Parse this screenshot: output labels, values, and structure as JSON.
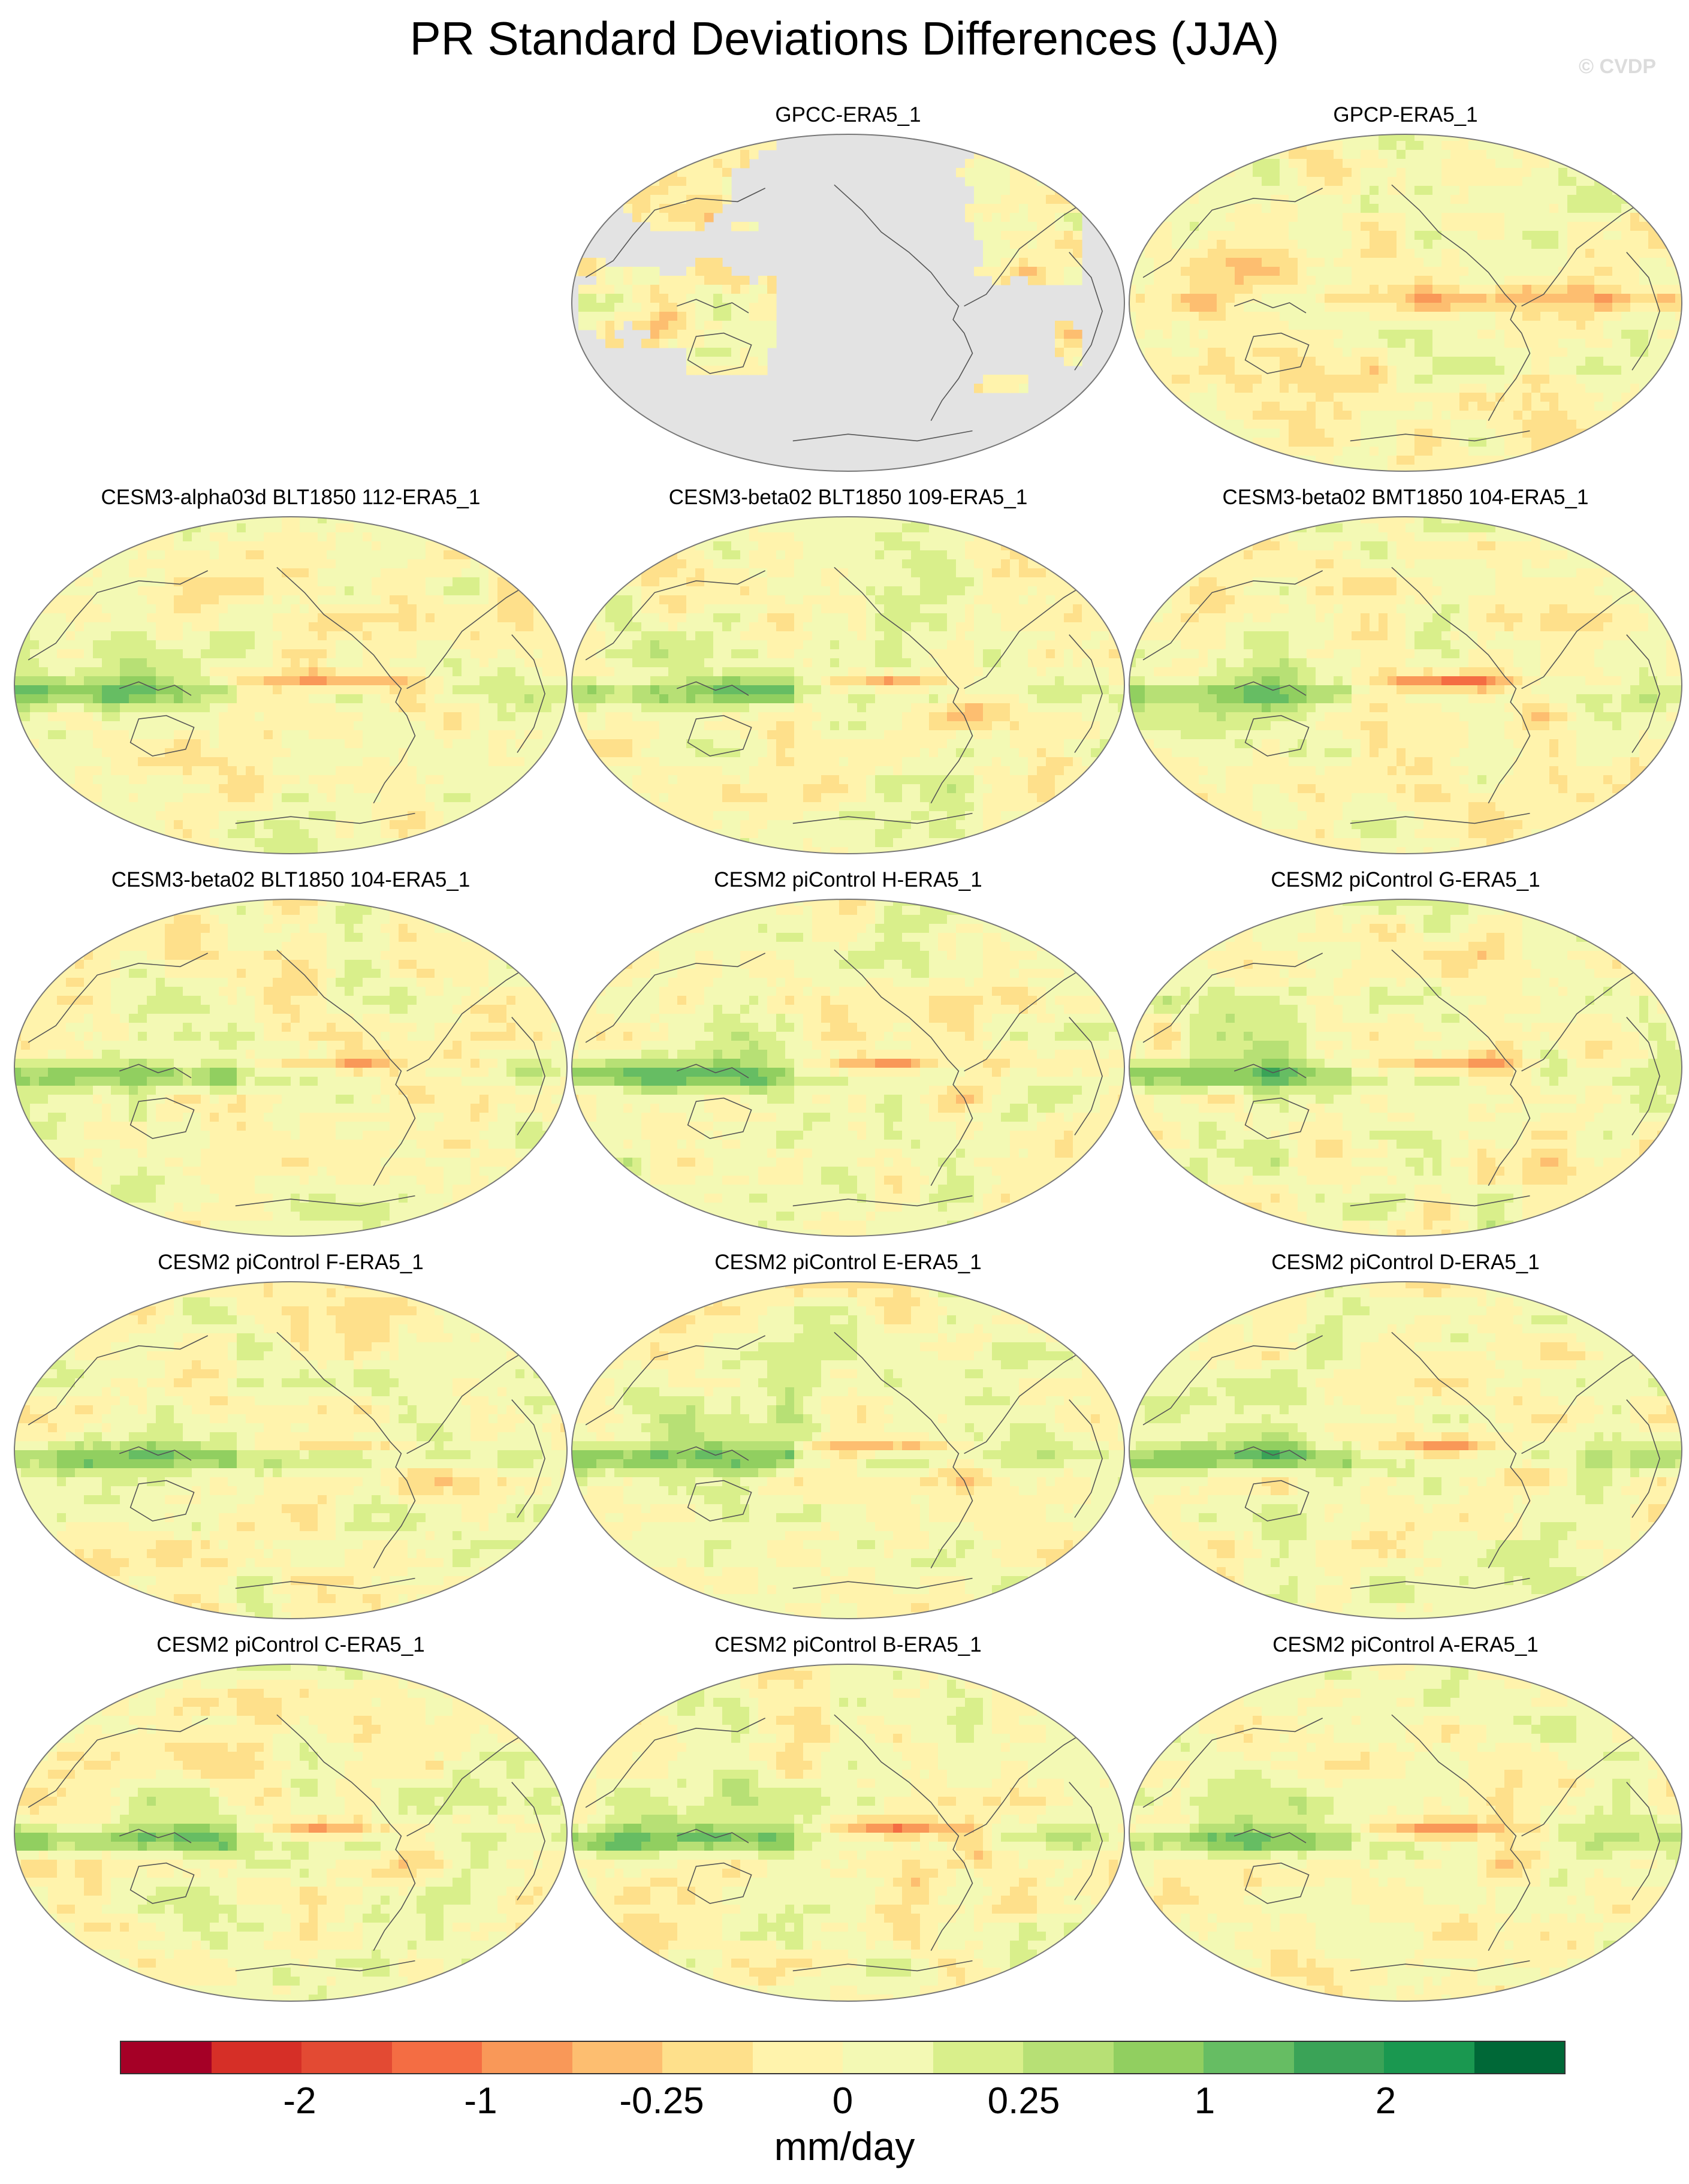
{
  "title": "PR Standard Deviations Differences (JJA)",
  "credit": "© CVDP",
  "panels": [
    {
      "label": "GPCC-ERA5_1",
      "variant": "land"
    },
    {
      "label": "GPCP-ERA5_1",
      "variant": "obs"
    },
    {
      "label": "CESM3-alpha03d BLT1850 112-ERA5_1",
      "variant": "model"
    },
    {
      "label": "CESM3-beta02 BLT1850 109-ERA5_1",
      "variant": "model"
    },
    {
      "label": "CESM3-beta02 BMT1850 104-ERA5_1",
      "variant": "model"
    },
    {
      "label": "CESM3-beta02 BLT1850 104-ERA5_1",
      "variant": "model"
    },
    {
      "label": "CESM2 piControl H-ERA5_1",
      "variant": "model"
    },
    {
      "label": "CESM2 piControl G-ERA5_1",
      "variant": "model"
    },
    {
      "label": "CESM2 piControl F-ERA5_1",
      "variant": "model"
    },
    {
      "label": "CESM2 piControl E-ERA5_1",
      "variant": "model"
    },
    {
      "label": "CESM2 piControl D-ERA5_1",
      "variant": "model"
    },
    {
      "label": "CESM2 piControl C-ERA5_1",
      "variant": "model"
    },
    {
      "label": "CESM2 piControl B-ERA5_1",
      "variant": "model"
    },
    {
      "label": "CESM2 piControl A-ERA5_1",
      "variant": "model"
    }
  ],
  "colorbar": {
    "colors": [
      "#a50026",
      "#d62f27",
      "#e34a33",
      "#f46d43",
      "#f99858",
      "#fdbe70",
      "#fee08b",
      "#fff3ac",
      "#f3f9b4",
      "#d9ef8b",
      "#b7e075",
      "#91cf60",
      "#66bd63",
      "#3aa357",
      "#1a9850",
      "#006837"
    ],
    "tick_labels": [
      "-2",
      "-1",
      "-0.25",
      "0",
      "0.25",
      "1",
      "2"
    ],
    "units": "mm/day"
  },
  "land_color": "#e3e3e3",
  "coast_color": "#555555"
}
